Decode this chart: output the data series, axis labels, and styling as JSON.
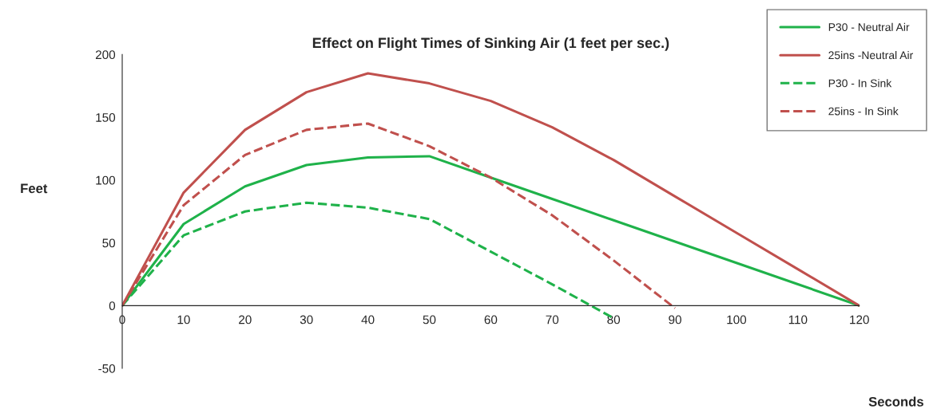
{
  "chart_data": {
    "type": "line",
    "title": "Effect on Flight Times of Sinking Air (1 feet per sec.)",
    "xlabel": "Seconds",
    "ylabel": "Feet",
    "xlim": [
      0,
      120
    ],
    "xticks": [
      0,
      10,
      20,
      30,
      40,
      50,
      60,
      70,
      80,
      90,
      100,
      110,
      120
    ],
    "ylim": [
      -50,
      200
    ],
    "yticks": [
      -50,
      0,
      50,
      100,
      150,
      200
    ],
    "grid": false,
    "legend": "top right",
    "series": [
      {
        "name": "P30 - Neutral Air",
        "color": "#1fb24a",
        "line_style": "solid",
        "x": [
          0,
          10,
          20,
          30,
          40,
          50,
          60,
          70,
          80,
          90,
          100,
          110,
          120
        ],
        "values": [
          0,
          65,
          95,
          112,
          118,
          119,
          102,
          85,
          68,
          51,
          34,
          17,
          0
        ]
      },
      {
        "name": "25ins -Neutral Air",
        "color": "#c0504d",
        "line_style": "solid",
        "x": [
          0,
          10,
          20,
          30,
          40,
          50,
          60,
          70,
          80,
          90,
          100,
          110,
          120
        ],
        "values": [
          0,
          90,
          140,
          170,
          185,
          177,
          163,
          142,
          116,
          87,
          58,
          29,
          0
        ]
      },
      {
        "name": "P30 - In Sink",
        "color": "#1fb24a",
        "line_style": "dashed",
        "x": [
          0,
          10,
          20,
          30,
          40,
          50,
          60,
          70,
          80
        ],
        "values": [
          0,
          56,
          75,
          82,
          78,
          69,
          43,
          17,
          -10
        ]
      },
      {
        "name": "25ins - In Sink",
        "color": "#c0504d",
        "line_style": "dashed",
        "x": [
          0,
          10,
          20,
          30,
          40,
          50,
          60,
          70,
          80,
          90
        ],
        "values": [
          0,
          80,
          120,
          140,
          145,
          127,
          102,
          72,
          36,
          -2
        ]
      }
    ]
  }
}
